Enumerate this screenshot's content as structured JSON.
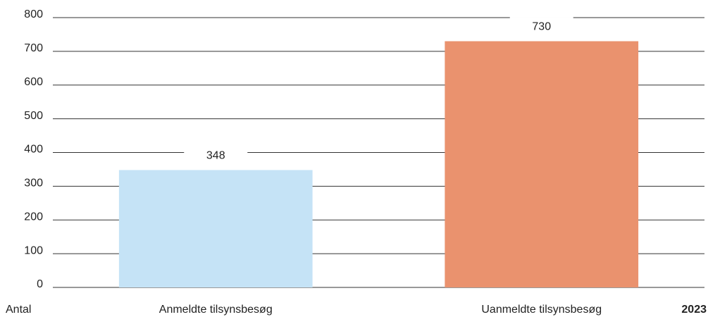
{
  "chart_data": {
    "type": "bar",
    "y_label": "Antal",
    "categories": [
      "Anmeldte tilsynsbesøg",
      "Uanmeldte tilsynsbesøg"
    ],
    "series": [
      {
        "name": "2023",
        "colors": [
          "#c5e3f6",
          "#ea926e"
        ],
        "values": [
          348,
          730
        ]
      }
    ],
    "ylim": [
      0,
      800
    ],
    "yticks": [
      0,
      100,
      200,
      300,
      400,
      500,
      600,
      700,
      800
    ],
    "grid": true
  }
}
